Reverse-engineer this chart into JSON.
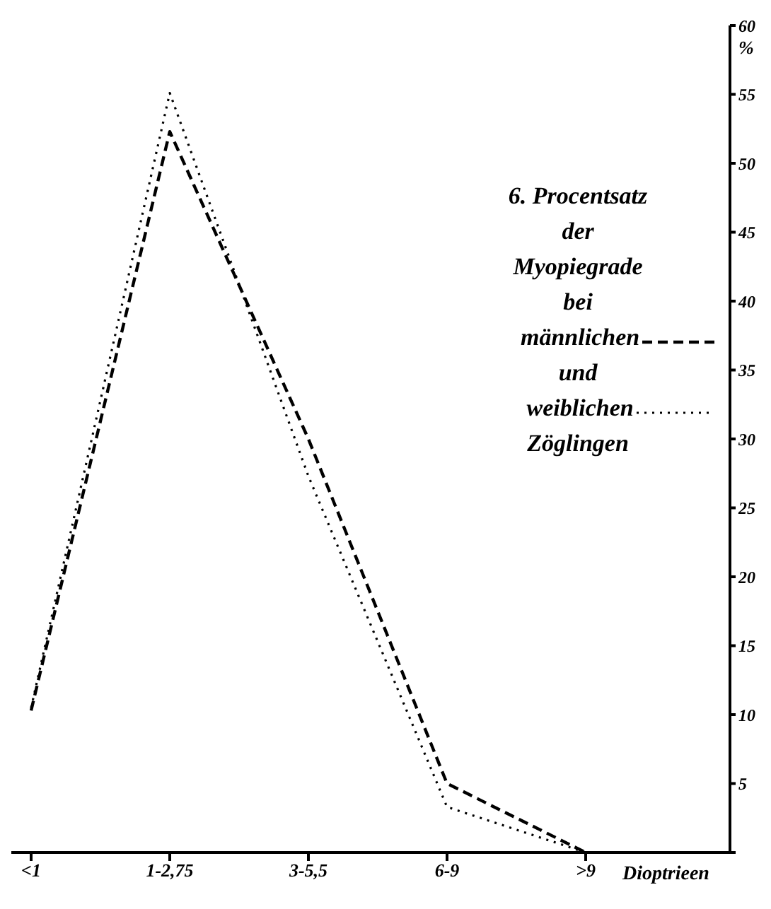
{
  "chart_data": {
    "type": "line",
    "title": "6. Procentsatz der Myopiegrade bei",
    "annotations": [
      "und",
      "Zöglingen"
    ],
    "xlabel": "Dioptrieen",
    "ylabel": "%",
    "categories": [
      "<1",
      "1-2,75",
      "3-5,5",
      "6-9",
      ">9"
    ],
    "series": [
      {
        "name": "männlichen",
        "color": "#000000",
        "line_style": "dashed",
        "values": [
          10.3,
          52.3,
          30,
          5,
          0
        ]
      },
      {
        "name": "weiblichen",
        "color": "#000000",
        "line_style": "dotted",
        "values": [
          10.5,
          55.1,
          27.3,
          3.3,
          0
        ]
      }
    ],
    "ylim": [
      0,
      60
    ],
    "yticks": [
      {
        "value": 0,
        "label": null
      },
      5,
      10,
      15,
      20,
      25,
      30,
      35,
      40,
      45,
      50,
      55,
      60
    ],
    "grid": false,
    "legend": "top right",
    "marker": "none"
  }
}
